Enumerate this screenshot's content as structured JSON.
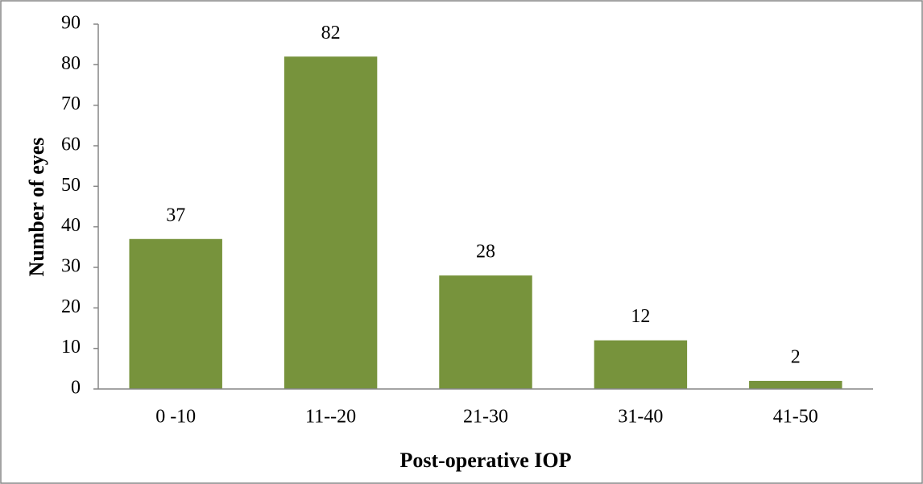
{
  "chart_data": {
    "type": "bar",
    "x_label": "Post-operative IOP",
    "y_label": "Number of eyes",
    "categories": [
      "0 -10",
      "11--20",
      "21-30",
      "31-40",
      "41-50"
    ],
    "values": [
      37,
      82,
      28,
      12,
      2
    ],
    "color": "#77933c",
    "ylim": [
      0,
      90
    ],
    "yticks": [
      0,
      10,
      20,
      30,
      40,
      50,
      60,
      70,
      80,
      90
    ],
    "grid": false
  }
}
